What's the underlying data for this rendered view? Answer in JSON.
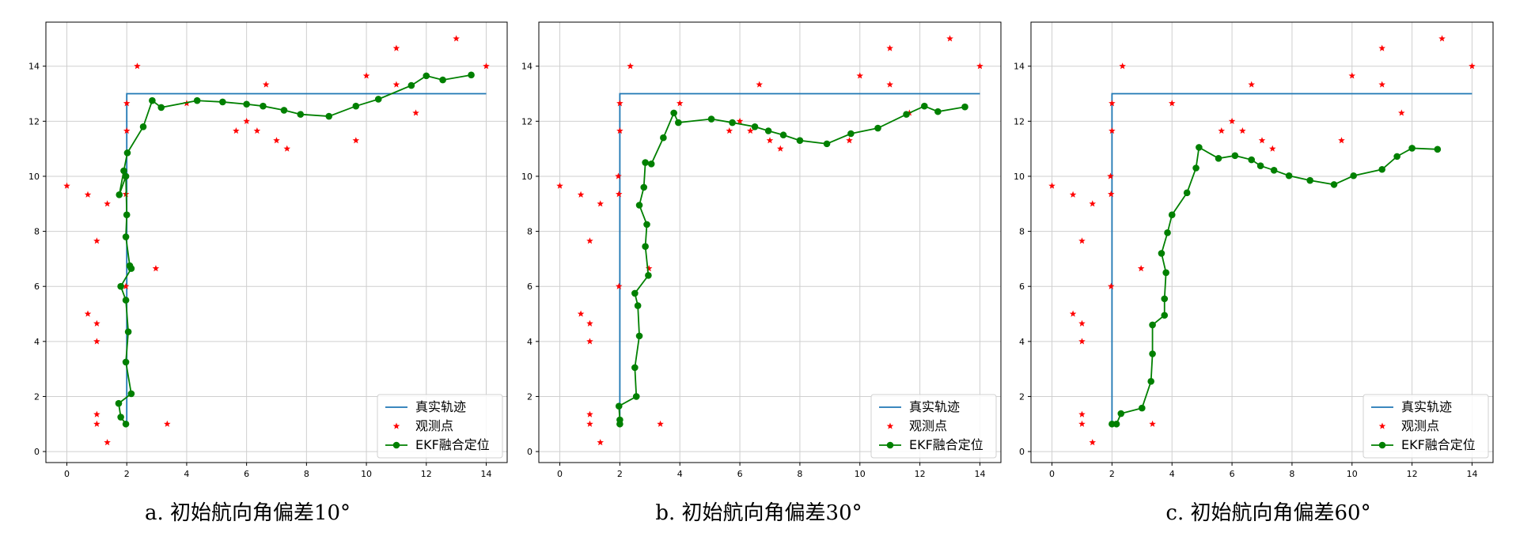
{
  "colors": {
    "truth": "#1f77b4",
    "observed": "#ff0000",
    "ekf": "#008000",
    "grid": "#cfcfcf",
    "axis": "#000000"
  },
  "legend": {
    "truth_label": "真实轨迹",
    "observed_label": "观测点",
    "ekf_label": "EKF融合定位"
  },
  "chart_data": [
    {
      "type": "line",
      "caption": "a. 初始航向角偏差10°",
      "xlim": [
        -0.7,
        14.7
      ],
      "ylim": [
        -0.4,
        15.6
      ],
      "xticks": [
        0,
        2,
        4,
        6,
        8,
        10,
        12,
        14
      ],
      "yticks": [
        0,
        2,
        4,
        6,
        8,
        10,
        12,
        14
      ],
      "grid": true,
      "legend_position": "lower-right",
      "truth": {
        "x": [
          2,
          2,
          14
        ],
        "y": [
          1,
          13,
          13
        ]
      },
      "observed": {
        "x": [
          0,
          0.7,
          1,
          1.35,
          1.95,
          2.35,
          1,
          0.7,
          1,
          1,
          1,
          1.35,
          3.35,
          2.97,
          1.97,
          1.97,
          2,
          2,
          4,
          5.65,
          6,
          6.35,
          6.65,
          7,
          7.35,
          9.65,
          10,
          11,
          11,
          11.65,
          13,
          14
        ],
        "y": [
          9.65,
          9.33,
          7.65,
          9,
          10,
          14,
          4.65,
          5,
          4,
          1.35,
          1,
          0.33,
          1,
          6.65,
          6,
          9.35,
          11.65,
          12.65,
          12.65,
          11.65,
          12,
          11.65,
          13.33,
          11.3,
          11,
          11.3,
          13.65,
          14.65,
          13.33,
          12.3,
          15,
          14
        ]
      },
      "ekf": {
        "x": [
          1.97,
          1.8,
          1.73,
          2.15,
          1.97,
          2.05,
          1.97,
          1.8,
          2.15,
          2.1,
          1.97,
          2,
          1.97,
          1.75,
          1.9,
          2.02,
          2.55,
          2.85,
          3.15,
          4.35,
          5.2,
          6,
          6.55,
          7.25,
          7.8,
          8.75,
          9.65,
          10.4,
          11.5,
          12,
          12.55,
          13.5
        ],
        "y": [
          1,
          1.25,
          1.75,
          2.1,
          3.25,
          4.35,
          5.5,
          6,
          6.65,
          6.75,
          7.8,
          8.6,
          10,
          9.33,
          10.2,
          10.85,
          11.8,
          12.75,
          12.5,
          12.75,
          12.7,
          12.62,
          12.55,
          12.4,
          12.25,
          12.18,
          12.55,
          12.8,
          13.3,
          13.65,
          13.5,
          13.68
        ]
      }
    },
    {
      "type": "line",
      "caption": "b. 初始航向角偏差30°",
      "xlim": [
        -0.7,
        14.7
      ],
      "ylim": [
        -0.4,
        15.6
      ],
      "xticks": [
        0,
        2,
        4,
        6,
        8,
        10,
        12,
        14
      ],
      "yticks": [
        0,
        2,
        4,
        6,
        8,
        10,
        12,
        14
      ],
      "grid": true,
      "legend_position": "lower-right",
      "truth": {
        "x": [
          2,
          2,
          14
        ],
        "y": [
          1,
          13,
          13
        ]
      },
      "observed": {
        "x": [
          0,
          0.7,
          1,
          1.35,
          1.95,
          2.35,
          1,
          0.7,
          1,
          1,
          1,
          1.35,
          3.35,
          2.97,
          1.97,
          1.97,
          2,
          2,
          4,
          5.65,
          6,
          6.35,
          6.65,
          7,
          7.35,
          9.65,
          10,
          11,
          11,
          11.65,
          13,
          14
        ],
        "y": [
          9.65,
          9.33,
          7.65,
          9,
          10,
          14,
          4.65,
          5,
          4,
          1.35,
          1,
          0.33,
          1,
          6.65,
          6,
          9.35,
          11.65,
          12.65,
          12.65,
          11.65,
          12,
          11.65,
          13.33,
          11.3,
          11,
          11.3,
          13.65,
          14.65,
          13.33,
          12.3,
          15,
          14
        ]
      },
      "ekf": {
        "x": [
          2,
          2,
          1.97,
          2.55,
          2.5,
          2.65,
          2.6,
          2.5,
          2.95,
          2.85,
          2.9,
          2.65,
          2.8,
          2.85,
          3.05,
          3.45,
          3.8,
          3.95,
          5.05,
          5.75,
          6.5,
          6.95,
          7.45,
          8,
          8.9,
          9.7,
          10.6,
          11.55,
          12.15,
          12.6,
          13.5
        ],
        "y": [
          1,
          1.15,
          1.65,
          2,
          3.05,
          4.2,
          5.3,
          5.75,
          6.4,
          7.45,
          8.25,
          8.95,
          9.6,
          10.5,
          10.45,
          11.4,
          12.3,
          11.95,
          12.08,
          11.95,
          11.8,
          11.65,
          11.5,
          11.3,
          11.18,
          11.55,
          11.75,
          12.25,
          12.55,
          12.35,
          12.52
        ]
      }
    },
    {
      "type": "line",
      "caption": "c. 初始航向角偏差60°",
      "xlim": [
        -0.7,
        14.7
      ],
      "ylim": [
        -0.4,
        15.6
      ],
      "xticks": [
        0,
        2,
        4,
        6,
        8,
        10,
        12,
        14
      ],
      "yticks": [
        0,
        2,
        4,
        6,
        8,
        10,
        12,
        14
      ],
      "grid": true,
      "legend_position": "lower-right",
      "truth": {
        "x": [
          2,
          2,
          14
        ],
        "y": [
          1,
          13,
          13
        ]
      },
      "observed": {
        "x": [
          0,
          0.7,
          1,
          1.35,
          1.95,
          2.35,
          1,
          0.7,
          1,
          1,
          1,
          1.35,
          3.35,
          2.97,
          1.97,
          1.97,
          2,
          2,
          4,
          5.65,
          6,
          6.35,
          6.65,
          7,
          7.35,
          9.65,
          10,
          11,
          11,
          11.65,
          13,
          14
        ],
        "y": [
          9.65,
          9.33,
          7.65,
          9,
          10,
          14,
          4.65,
          5,
          4,
          1.35,
          1,
          0.33,
          1,
          6.65,
          6,
          9.35,
          11.65,
          12.65,
          12.65,
          11.65,
          12,
          11.65,
          13.33,
          11.3,
          11,
          11.3,
          13.65,
          14.65,
          13.33,
          12.3,
          15,
          14
        ]
      },
      "ekf": {
        "x": [
          2,
          2.15,
          2.3,
          3,
          3.3,
          3.35,
          3.35,
          3.75,
          3.75,
          3.8,
          3.65,
          3.85,
          4,
          4.5,
          4.8,
          4.9,
          5.55,
          6.1,
          6.65,
          6.95,
          7.4,
          7.9,
          8.6,
          9.4,
          10.05,
          11,
          11.5,
          12,
          12.85
        ],
        "y": [
          1,
          1,
          1.38,
          1.58,
          2.55,
          3.55,
          4.6,
          4.95,
          5.55,
          6.5,
          7.2,
          7.95,
          8.6,
          9.4,
          10.3,
          11.05,
          10.65,
          10.75,
          10.6,
          10.38,
          10.22,
          10.02,
          9.85,
          9.7,
          10.02,
          10.25,
          10.72,
          11.02,
          10.98
        ]
      }
    }
  ]
}
